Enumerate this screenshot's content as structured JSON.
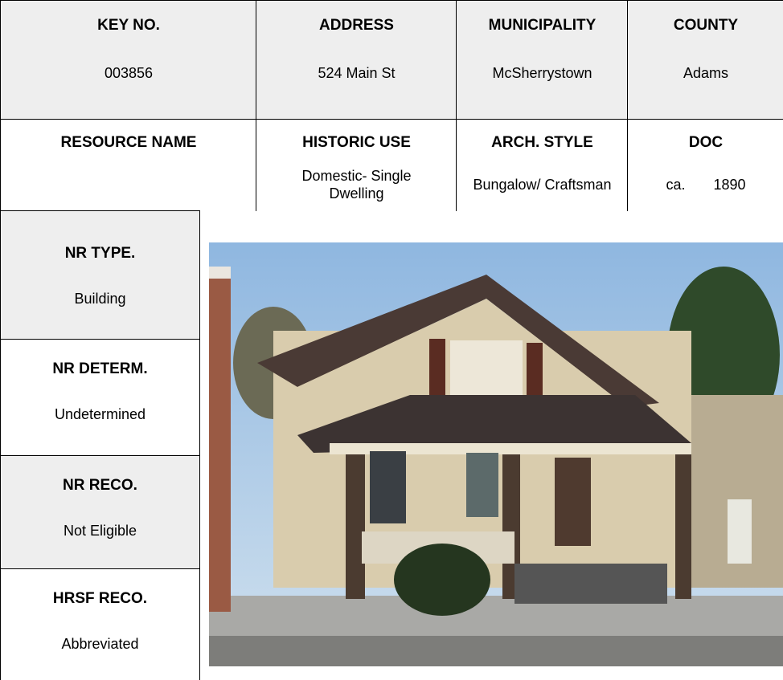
{
  "rows": [
    [
      {
        "label": "KEY NO.",
        "value": "003856"
      },
      {
        "label": "ADDRESS",
        "value": "524 Main St"
      },
      {
        "label": "MUNICIPALITY",
        "value": "McSherrystown"
      },
      {
        "label": "COUNTY",
        "value": "Adams"
      }
    ],
    [
      {
        "label": "RESOURCE NAME",
        "value": ""
      },
      {
        "label": "HISTORIC USE",
        "value": "Domestic- Single Dwelling"
      },
      {
        "label": "ARCH. STYLE",
        "value": "Bungalow/ Craftsman"
      },
      {
        "label": "DOC",
        "value": "ca. 1890"
      }
    ]
  ],
  "side": [
    {
      "label": "NR TYPE.",
      "value": "Building"
    },
    {
      "label": "NR DETERM.",
      "value": "Undetermined"
    },
    {
      "label": "NR RECO.",
      "value": "Not Eligible"
    },
    {
      "label": "HRSF RECO.",
      "value": "Abbreviated"
    }
  ]
}
